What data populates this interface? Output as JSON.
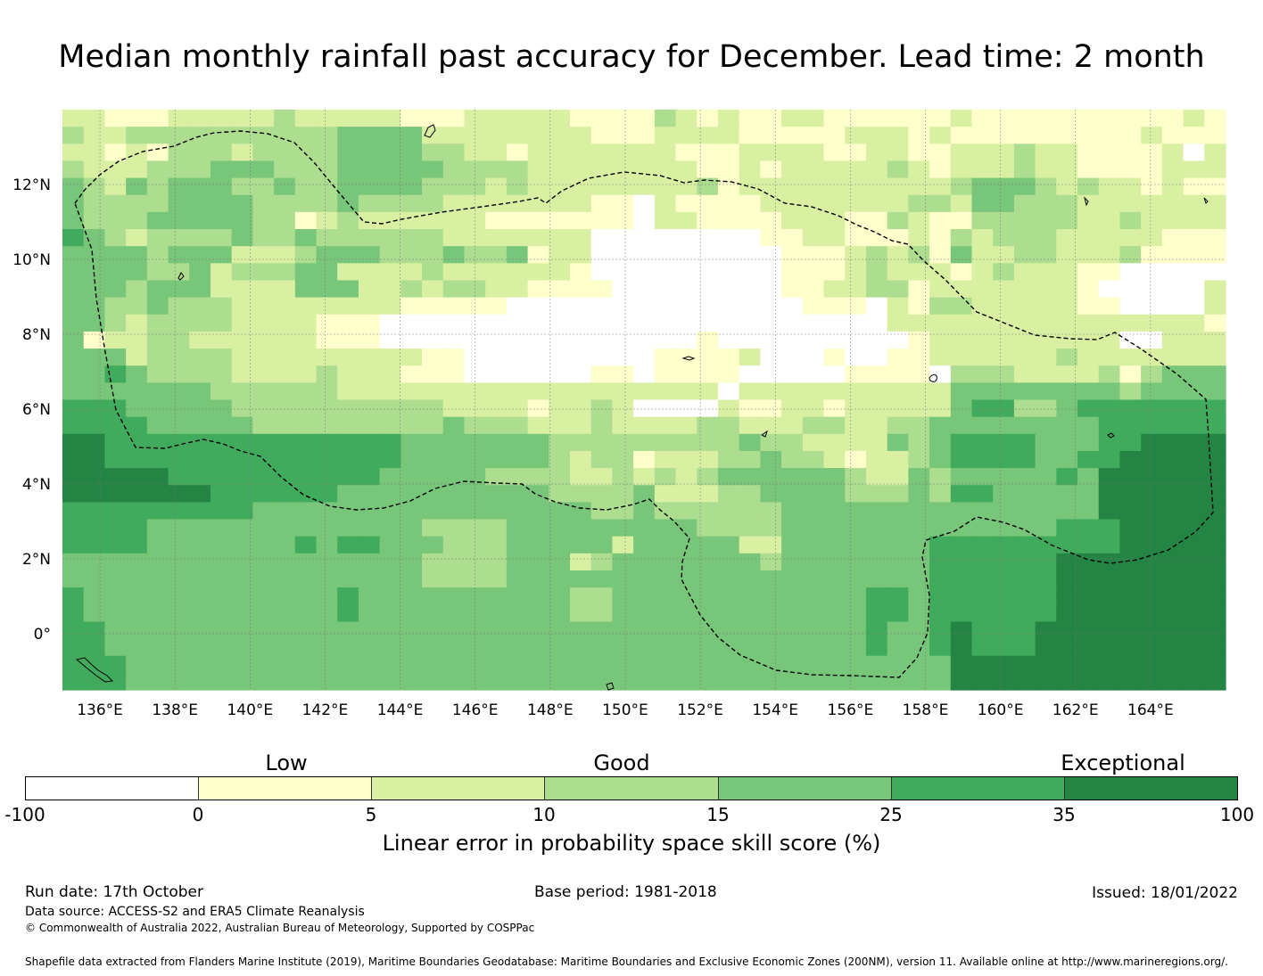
{
  "title": "Median monthly rainfall past accuracy for December. Lead time: 2 month",
  "map": {
    "lon_range": [
      135,
      166
    ],
    "lat_range": [
      -1.5,
      14
    ],
    "lon_ticks": [
      "136°E",
      "138°E",
      "140°E",
      "142°E",
      "144°E",
      "146°E",
      "148°E",
      "150°E",
      "152°E",
      "154°E",
      "156°E",
      "158°E",
      "160°E",
      "162°E",
      "164°E"
    ],
    "lat_ticks": [
      "12°N",
      "10°N",
      "8°N",
      "6°N",
      "4°N",
      "2°N",
      "0°"
    ],
    "boundary_line": "dashed",
    "grid_legend": "0=white(-100..0),1=lightyellow(0..5),2=yellowgreen(5..10),3=lightgreen(10..15),4=green(15..25),5=mediumgreen(25..35),6=darkgreen(35..100)",
    "score_grid": [
      "2211122222322222111222221111321211221111112111111111121",
      "3223333333333444422222222111222211111222121111111112111",
      "2212133323333444433221222222211122221122112223221111202",
      "3222333444333444443333222222221121222223212223221111222",
      "4324344433433444433323222222223122222222223444323221211",
      "4333344443333433332222222110211112222222332443332222222",
      "4333444443312322222211111110221111222113211333332232222",
      "5432333343343333332222222000000001122111213233322222111",
      "4444344422234443334334122000000000111232314223322231111",
      "4444334233344222232222221000000000111232221232221100000",
      "4443444222244422323322111100000000112233122222221000002",
      "4433433322222222111110000000000000011102133222221100002",
      "4432333322221110000000000000000000000002222222222222221",
      "4122332222221110000000000000001000000000122222222200222",
      "4442333322222222211000000000111120001001122222232222222",
      "4454333322223222111000000110111100000111103332222313444",
      "4444444333333222222222222222222022222222224444444434444",
      "5554444433333333332222122320000211221222224553345555555",
      "5555444443333333334333222322223322233223344444444555555",
      "6655555555555555444444433333333343322224345555444556666",
      "6655555555555555444444432331222334332122345555445566666",
      "6666655555555554444433332232323444444322434444454666666",
      "6666666555555444444444433334222334444333435544444666666",
      "5555555554444444444444444334333333444444444444444666666",
      "5555444444444444433334444444443333444444444444455566666",
      "5555444444454554443334444424444422444444455555555566666",
      "4444444444444444433334442344444443444444455555566666666",
      "4444444444444444433334444444444444444444455555566666666",
      "5444444444444544444444443344444444444455455555566666666",
      "5444444444444544444444443344444444444455455555566666666",
      "5544444444444444444444444444444444444454456555666666666",
      "5544444444444444444444444444444444444454456555666666666",
      "5554444444444444444444444444444444444444446666666666666",
      "5554444444444444444444444444444444444444446666666666666"
    ]
  },
  "colorbar": {
    "colors": [
      "#ffffff",
      "#ffffcc",
      "#d9f0a3",
      "#addd8e",
      "#78c679",
      "#41ab5d",
      "#238443"
    ],
    "low_label": "Low",
    "good_label": "Good",
    "exceptional_label": "Exceptional",
    "ticks": [
      "-100",
      "0",
      "5",
      "10",
      "15",
      "25",
      "35",
      "100"
    ],
    "title": "Linear error in probability space skill score (%)"
  },
  "footer": {
    "run_date": "Run date: 17th October",
    "base_period": "Base period: 1981-2018",
    "issued": "Issued: 18/01/2022",
    "data_source": "Data source: ACCESS-S2 and ERA5 Climate Reanalysis",
    "copyright": "© Commonwealth of Australia 2022, Australian Bureau of Meteorology, Supported by COSPPac",
    "shapefile": "Shapefile data extracted from Flanders Marine Institute (2019), Maritime Boundaries Geodatabase: Maritime Boundaries and Exclusive Economic Zones (200NM), version 11. Available online at http://www.marineregions.org/."
  }
}
